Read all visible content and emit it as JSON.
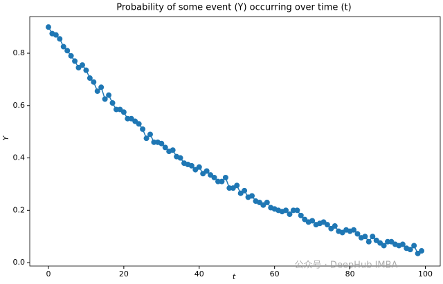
{
  "chart_data": {
    "type": "line",
    "title": "Probability of some event (Y) occurring over time (t)",
    "x_label": "t",
    "y_label": "Y",
    "watermark": "公众号 · DeepHub IMBA",
    "x": [
      0,
      1,
      2,
      3,
      4,
      5,
      6,
      7,
      8,
      9,
      10,
      11,
      12,
      13,
      14,
      15,
      16,
      17,
      18,
      19,
      20,
      21,
      22,
      23,
      24,
      25,
      26,
      27,
      28,
      29,
      30,
      31,
      32,
      33,
      34,
      35,
      36,
      37,
      38,
      39,
      40,
      41,
      42,
      43,
      44,
      45,
      46,
      47,
      48,
      49,
      50,
      51,
      52,
      53,
      54,
      55,
      56,
      57,
      58,
      59,
      60,
      61,
      62,
      63,
      64,
      65,
      66,
      67,
      68,
      69,
      70,
      71,
      72,
      73,
      74,
      75,
      76,
      77,
      78,
      79,
      80,
      81,
      82,
      83,
      84,
      85,
      86,
      87,
      88,
      89,
      90,
      91,
      92,
      93,
      94,
      95,
      96,
      97,
      98,
      99
    ],
    "series": [
      {
        "name": "Y",
        "color": "#1f77b4",
        "values": [
          0.9,
          0.875,
          0.87,
          0.855,
          0.825,
          0.81,
          0.79,
          0.77,
          0.745,
          0.755,
          0.735,
          0.705,
          0.69,
          0.655,
          0.67,
          0.625,
          0.64,
          0.61,
          0.585,
          0.585,
          0.575,
          0.55,
          0.55,
          0.54,
          0.53,
          0.51,
          0.475,
          0.49,
          0.46,
          0.46,
          0.455,
          0.44,
          0.425,
          0.43,
          0.405,
          0.4,
          0.38,
          0.375,
          0.37,
          0.355,
          0.365,
          0.34,
          0.35,
          0.335,
          0.325,
          0.31,
          0.31,
          0.325,
          0.285,
          0.285,
          0.295,
          0.265,
          0.275,
          0.25,
          0.255,
          0.235,
          0.23,
          0.22,
          0.23,
          0.21,
          0.205,
          0.2,
          0.195,
          0.2,
          0.185,
          0.2,
          0.2,
          0.18,
          0.165,
          0.155,
          0.16,
          0.145,
          0.15,
          0.155,
          0.145,
          0.13,
          0.14,
          0.12,
          0.115,
          0.125,
          0.12,
          0.125,
          0.11,
          0.095,
          0.1,
          0.08,
          0.1,
          0.085,
          0.075,
          0.065,
          0.08,
          0.08,
          0.07,
          0.065,
          0.07,
          0.055,
          0.05,
          0.065,
          0.035,
          0.045
        ]
      }
    ],
    "xlim": [
      -4.95,
      103.95
    ],
    "ylim": [
      -0.013,
      0.94
    ],
    "xticks": [
      0,
      20,
      40,
      60,
      80,
      100
    ],
    "yticks": [
      {
        "value": 0,
        "label": "0.0"
      },
      0.2,
      0.4,
      0.6,
      0.8
    ],
    "grid": false,
    "markers": true
  }
}
